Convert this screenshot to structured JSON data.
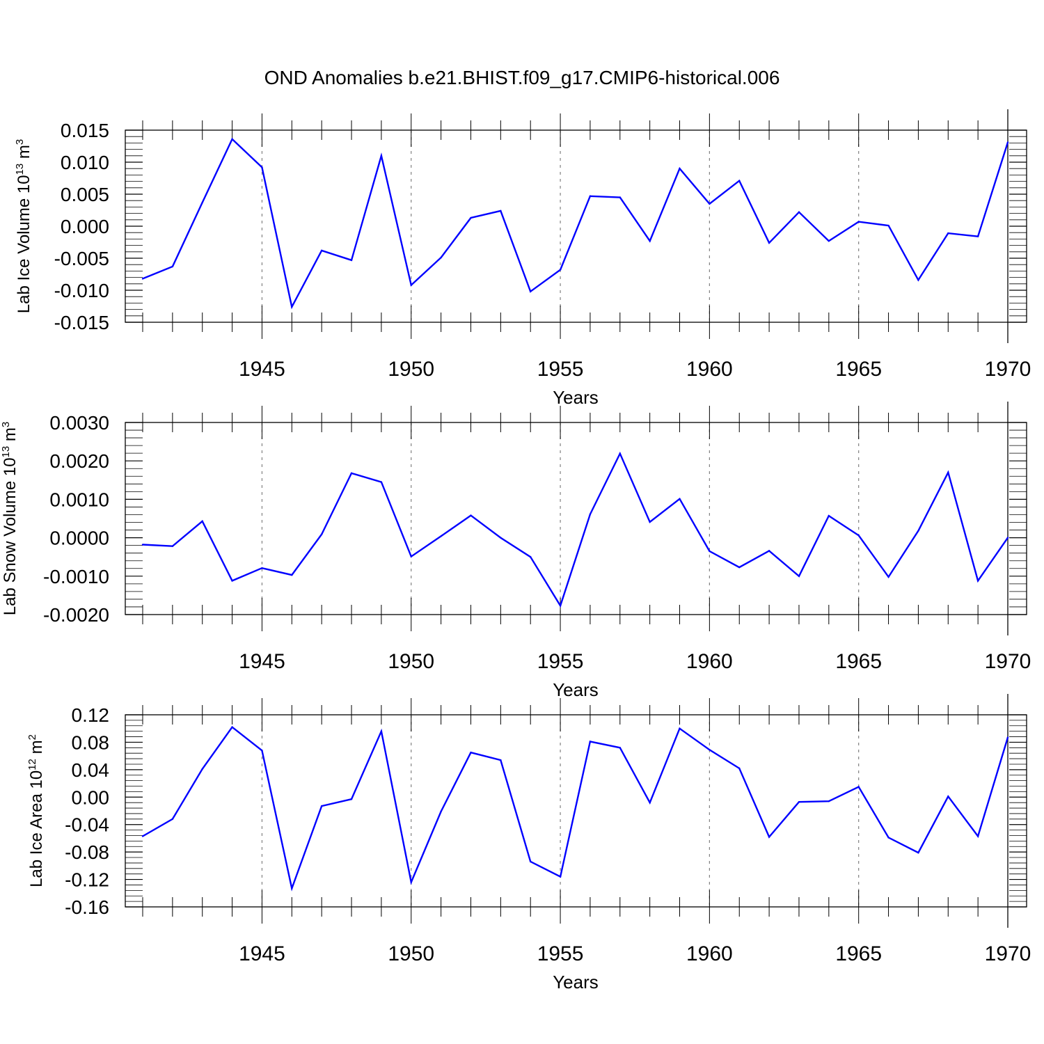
{
  "title": "OND Anomalies b.e21.BHIST.f09_g17.CMIP6-historical.006",
  "colors": {
    "line": "#0000ff",
    "axis": "#000000",
    "grid": "#808080"
  },
  "chart_data": [
    {
      "type": "line",
      "ylabel": "Lab Ice Volume 10",
      "ylabel_exp": "13",
      "ylabel_unit": " m",
      "ylabel_unit_exp": "3",
      "xlabel": "Years",
      "xlim": [
        1941,
        1970
      ],
      "ylim": [
        -0.015,
        0.015
      ],
      "yticks": [
        -0.015,
        -0.01,
        -0.005,
        0.0,
        0.005,
        0.01,
        0.015
      ],
      "ytick_labels": [
        "-0.015",
        "-0.010",
        "-0.005",
        "0.000",
        "0.005",
        "0.010",
        "0.015"
      ],
      "xticks": [
        1945,
        1950,
        1955,
        1960,
        1965,
        1970
      ],
      "xtick_labels": [
        "1945",
        "1950",
        "1955",
        "1960",
        "1965",
        "1970"
      ],
      "x": [
        1941,
        1942,
        1943,
        1944,
        1945,
        1946,
        1947,
        1948,
        1949,
        1950,
        1951,
        1952,
        1953,
        1954,
        1955,
        1956,
        1957,
        1958,
        1959,
        1960,
        1961,
        1962,
        1963,
        1964,
        1965,
        1966,
        1967,
        1968,
        1969,
        1970
      ],
      "y": [
        -0.0082,
        -0.0063,
        0.0037,
        0.0136,
        0.0092,
        -0.0126,
        -0.0038,
        -0.0053,
        0.011,
        -0.0092,
        -0.0049,
        0.0013,
        0.0024,
        -0.0102,
        -0.0068,
        0.0047,
        0.0045,
        -0.0023,
        0.009,
        0.0035,
        0.0071,
        -0.0026,
        0.0022,
        -0.0023,
        0.0007,
        0.0001,
        -0.0084,
        -0.0011,
        -0.0016,
        0.0131
      ]
    },
    {
      "type": "line",
      "ylabel": "Lab Snow Volume 10",
      "ylabel_exp": "13",
      "ylabel_unit": " m",
      "ylabel_unit_exp": "3",
      "xlabel": "Years",
      "xlim": [
        1941,
        1970
      ],
      "ylim": [
        -0.002,
        0.003
      ],
      "yticks": [
        -0.002,
        -0.001,
        0.0,
        0.001,
        0.002,
        0.003
      ],
      "ytick_labels": [
        "-0.0020",
        "-0.0010",
        "0.0000",
        "0.0010",
        "0.0020",
        "0.0030"
      ],
      "xticks": [
        1945,
        1950,
        1955,
        1960,
        1965,
        1970
      ],
      "xtick_labels": [
        "1945",
        "1950",
        "1955",
        "1960",
        "1965",
        "1970"
      ],
      "x": [
        1941,
        1942,
        1943,
        1944,
        1945,
        1946,
        1947,
        1948,
        1949,
        1950,
        1951,
        1952,
        1953,
        1954,
        1955,
        1956,
        1957,
        1958,
        1959,
        1960,
        1961,
        1962,
        1963,
        1964,
        1965,
        1966,
        1967,
        1968,
        1969,
        1970
      ],
      "y": [
        -0.00018,
        -0.00022,
        0.00043,
        -0.00112,
        -0.00079,
        -0.00097,
        9e-05,
        0.00168,
        0.00145,
        -0.00049,
        4e-05,
        0.00058,
        0.0,
        -0.0005,
        -0.00177,
        0.00061,
        0.00219,
        0.00041,
        0.00101,
        -0.00035,
        -0.00077,
        -0.00034,
        -0.001,
        0.00057,
        6e-05,
        -0.00102,
        0.00018,
        0.0017,
        -0.00112,
        0.0
      ]
    },
    {
      "type": "line",
      "ylabel": "Lab Ice Area 10",
      "ylabel_exp": "12",
      "ylabel_unit": " m",
      "ylabel_unit_exp": "2",
      "xlabel": "Years",
      "xlim": [
        1941,
        1970
      ],
      "ylim": [
        -0.16,
        0.12
      ],
      "yticks": [
        -0.16,
        -0.12,
        -0.08,
        -0.04,
        0.0,
        0.04,
        0.08,
        0.12
      ],
      "ytick_labels": [
        "-0.16",
        "-0.12",
        "-0.08",
        "-0.04",
        "0.00",
        "0.04",
        "0.08",
        "0.12"
      ],
      "xticks": [
        1945,
        1950,
        1955,
        1960,
        1965,
        1970
      ],
      "xtick_labels": [
        "1945",
        "1950",
        "1955",
        "1960",
        "1965",
        "1970"
      ],
      "x": [
        1941,
        1942,
        1943,
        1944,
        1945,
        1946,
        1947,
        1948,
        1949,
        1950,
        1951,
        1952,
        1953,
        1954,
        1955,
        1956,
        1957,
        1958,
        1959,
        1960,
        1961,
        1962,
        1963,
        1964,
        1965,
        1966,
        1967,
        1968,
        1969,
        1970
      ],
      "y": [
        -0.057,
        -0.032,
        0.041,
        0.102,
        0.068,
        -0.133,
        -0.013,
        -0.003,
        0.096,
        -0.124,
        -0.021,
        0.065,
        0.054,
        -0.094,
        -0.116,
        0.081,
        0.072,
        -0.008,
        0.1,
        0.069,
        0.042,
        -0.058,
        -0.007,
        -0.006,
        0.015,
        -0.059,
        -0.081,
        0.001,
        -0.057,
        0.087
      ]
    }
  ]
}
